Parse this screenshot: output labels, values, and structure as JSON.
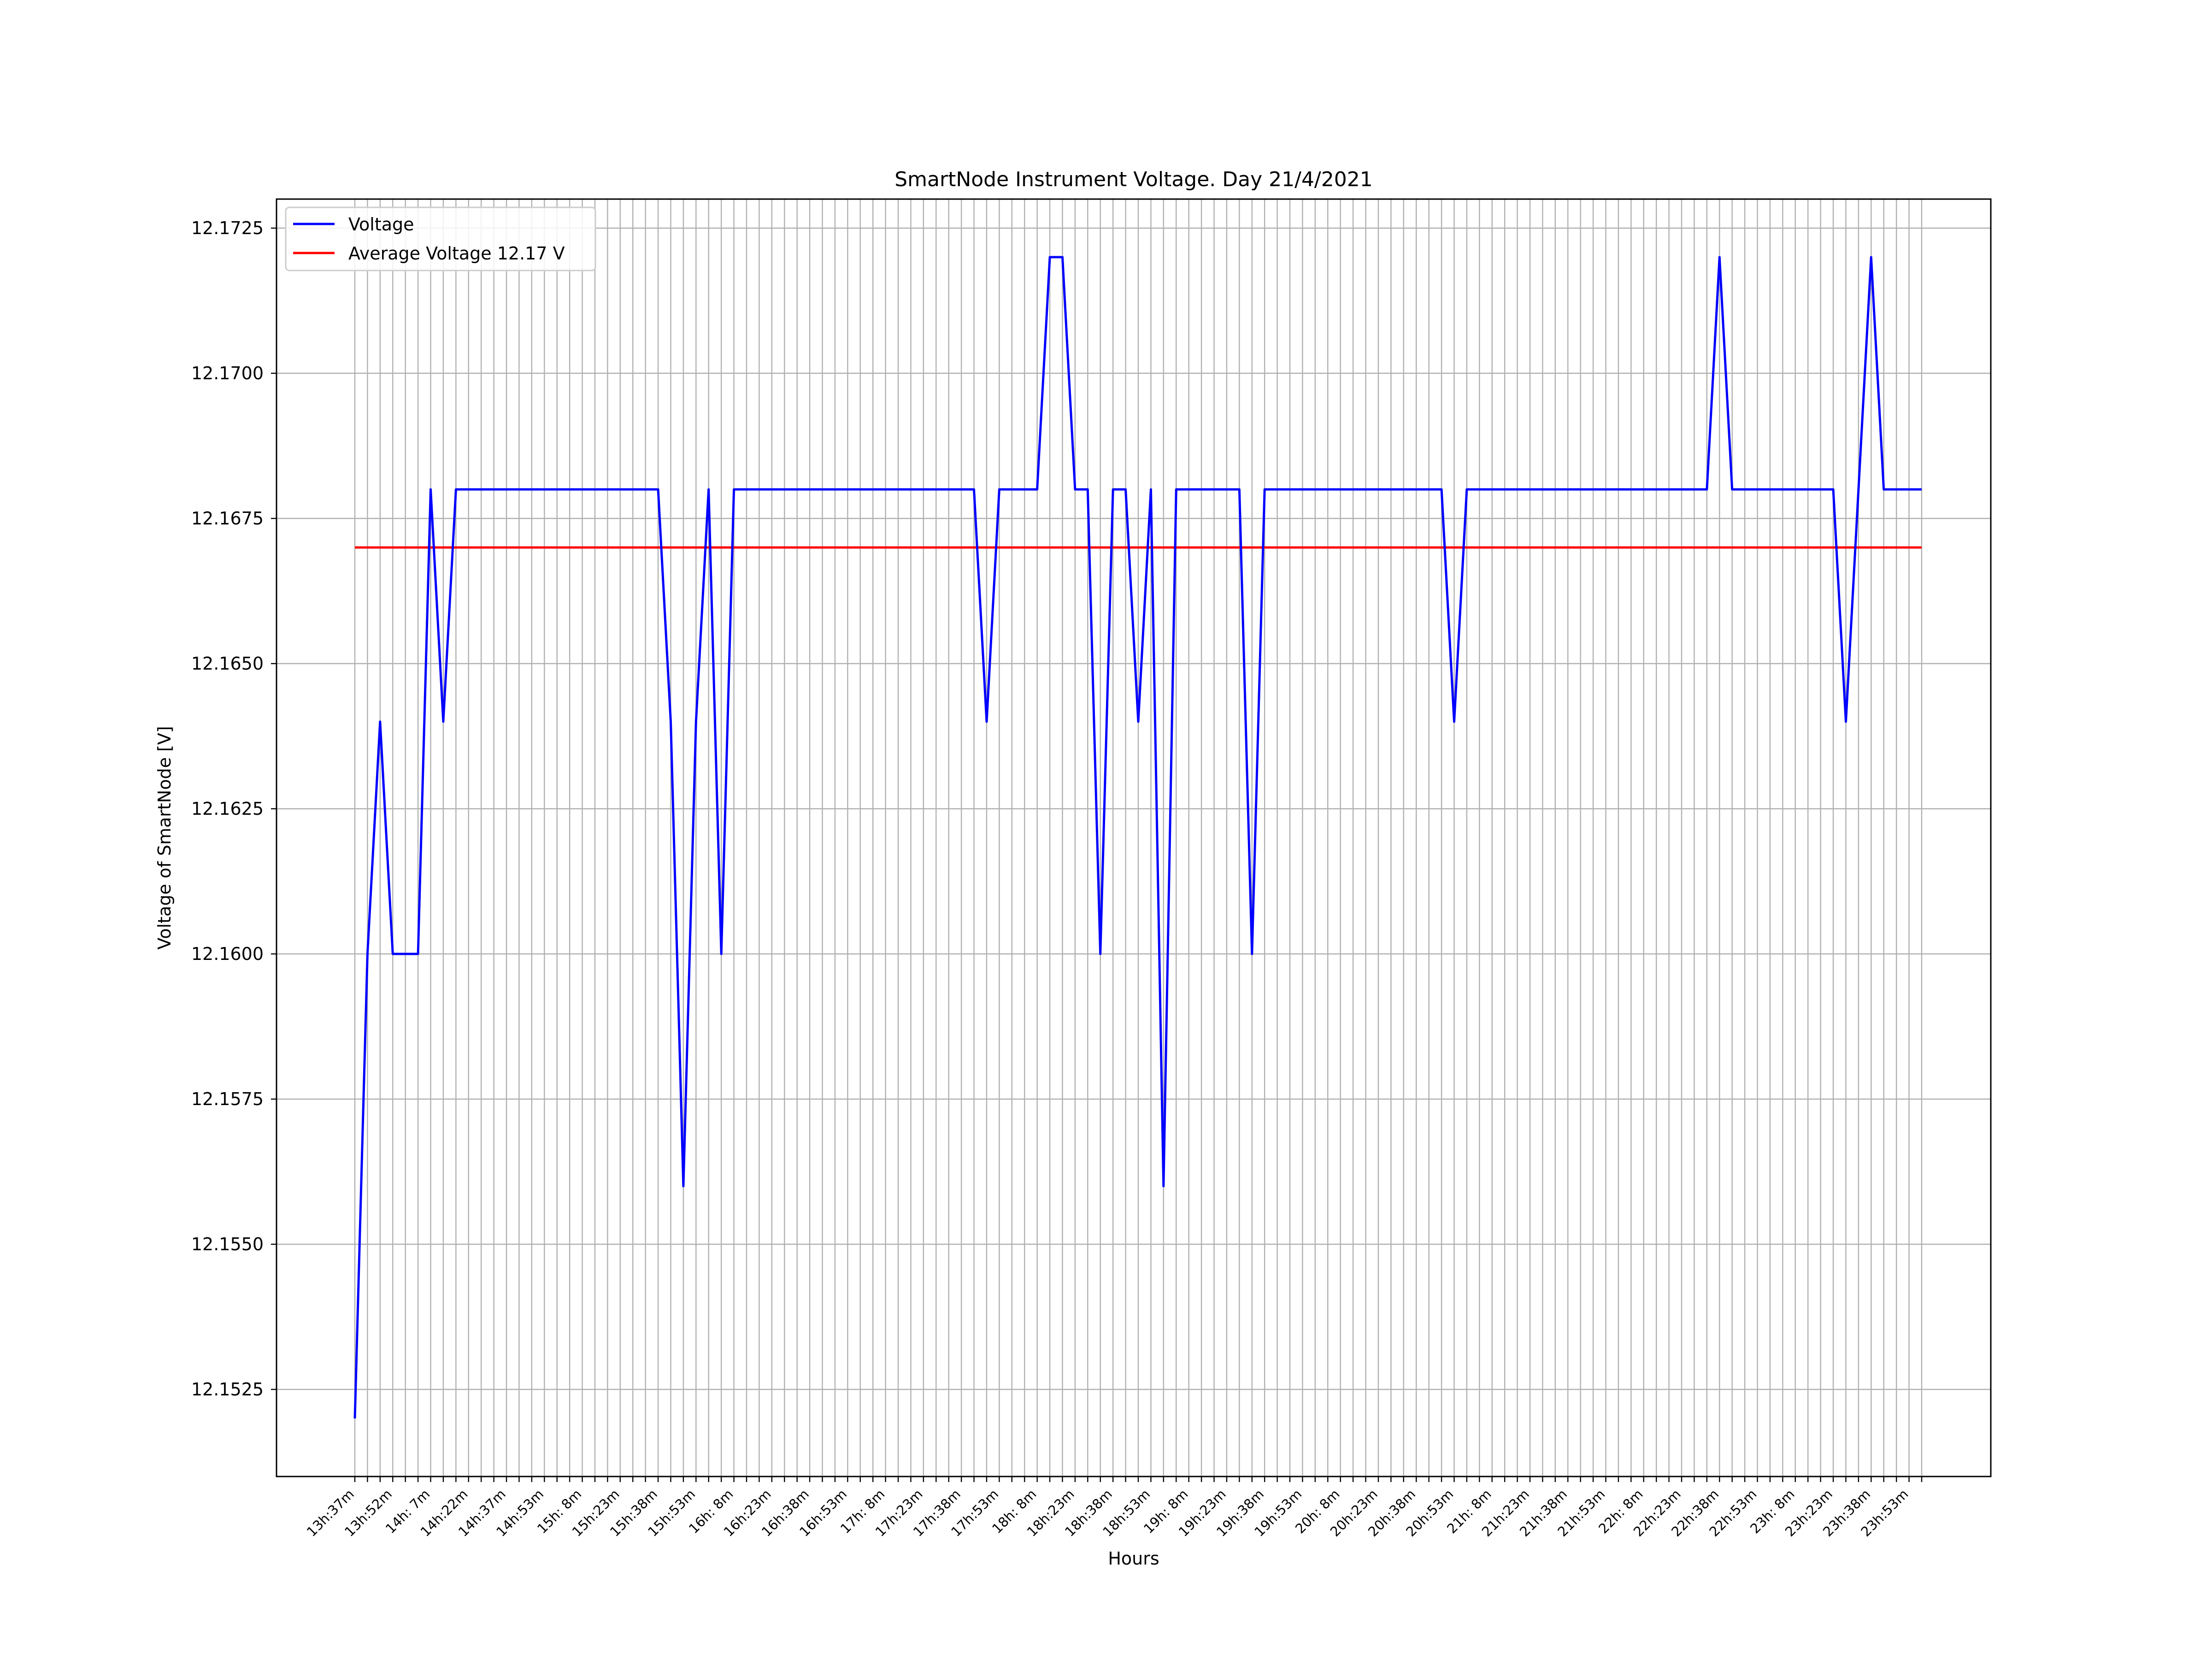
{
  "chart_data": {
    "type": "line",
    "title": "SmartNode Instrument Voltage. Day 21/4/2021",
    "xlabel": "Hours",
    "ylabel": "Voltage of SmartNode [V]",
    "ylim": [
      12.151,
      12.173
    ],
    "yticks": [
      "12.1525",
      "12.1550",
      "12.1575",
      "12.1600",
      "12.1625",
      "12.1650",
      "12.1675",
      "12.1700",
      "12.1725"
    ],
    "grid": true,
    "legend_position": "upper-left",
    "x_tick_labels": [
      "13h:37m",
      "13h:52m",
      "14h: 7m",
      "14h:22m",
      "14h:37m",
      "14h:53m",
      "15h: 8m",
      "15h:23m",
      "15h:38m",
      "15h:53m",
      "16h: 8m",
      "16h:23m",
      "16h:38m",
      "16h:53m",
      "17h: 8m",
      "17h:23m",
      "17h:38m",
      "17h:53m",
      "18h: 8m",
      "18h:23m",
      "18h:38m",
      "18h:53m",
      "19h: 8m",
      "19h:23m",
      "19h:38m",
      "19h:53m",
      "20h: 8m",
      "20h:23m",
      "20h:38m",
      "20h:53m",
      "21h: 8m",
      "21h:23m",
      "21h:38m",
      "21h:53m",
      "22h: 8m",
      "22h:23m",
      "22h:38m",
      "22h:53m",
      "23h: 8m",
      "23h:23m",
      "23h:38m",
      "23h:53m"
    ],
    "series": [
      {
        "name": "Voltage",
        "color": "#0000ff",
        "values": [
          12.152,
          12.16,
          12.164,
          12.16,
          12.16,
          12.16,
          12.168,
          12.164,
          12.168,
          12.168,
          12.168,
          12.168,
          12.168,
          12.168,
          12.168,
          12.168,
          12.168,
          12.168,
          12.168,
          12.168,
          12.168,
          12.168,
          12.168,
          12.168,
          12.168,
          12.164,
          12.156,
          12.164,
          12.168,
          12.16,
          12.168,
          12.168,
          12.168,
          12.168,
          12.168,
          12.168,
          12.168,
          12.168,
          12.168,
          12.168,
          12.168,
          12.168,
          12.168,
          12.168,
          12.168,
          12.168,
          12.168,
          12.168,
          12.168,
          12.168,
          12.164,
          12.168,
          12.168,
          12.168,
          12.168,
          12.172,
          12.172,
          12.168,
          12.168,
          12.16,
          12.168,
          12.168,
          12.164,
          12.168,
          12.156,
          12.168,
          12.168,
          12.168,
          12.168,
          12.168,
          12.168,
          12.16,
          12.168,
          12.168,
          12.168,
          12.168,
          12.168,
          12.168,
          12.168,
          12.168,
          12.168,
          12.168,
          12.168,
          12.168,
          12.168,
          12.168,
          12.168,
          12.164,
          12.168,
          12.168,
          12.168,
          12.168,
          12.168,
          12.168,
          12.168,
          12.168,
          12.168,
          12.168,
          12.168,
          12.168,
          12.168,
          12.168,
          12.168,
          12.168,
          12.168,
          12.168,
          12.168,
          12.168,
          12.172,
          12.168,
          12.168,
          12.168,
          12.168,
          12.168,
          12.168,
          12.168,
          12.168,
          12.168,
          12.164,
          12.168,
          12.172,
          12.168,
          12.168,
          12.168,
          12.168
        ]
      },
      {
        "name": "Average Voltage 12.17 V",
        "color": "#ff0000",
        "value": 12.167
      }
    ]
  }
}
